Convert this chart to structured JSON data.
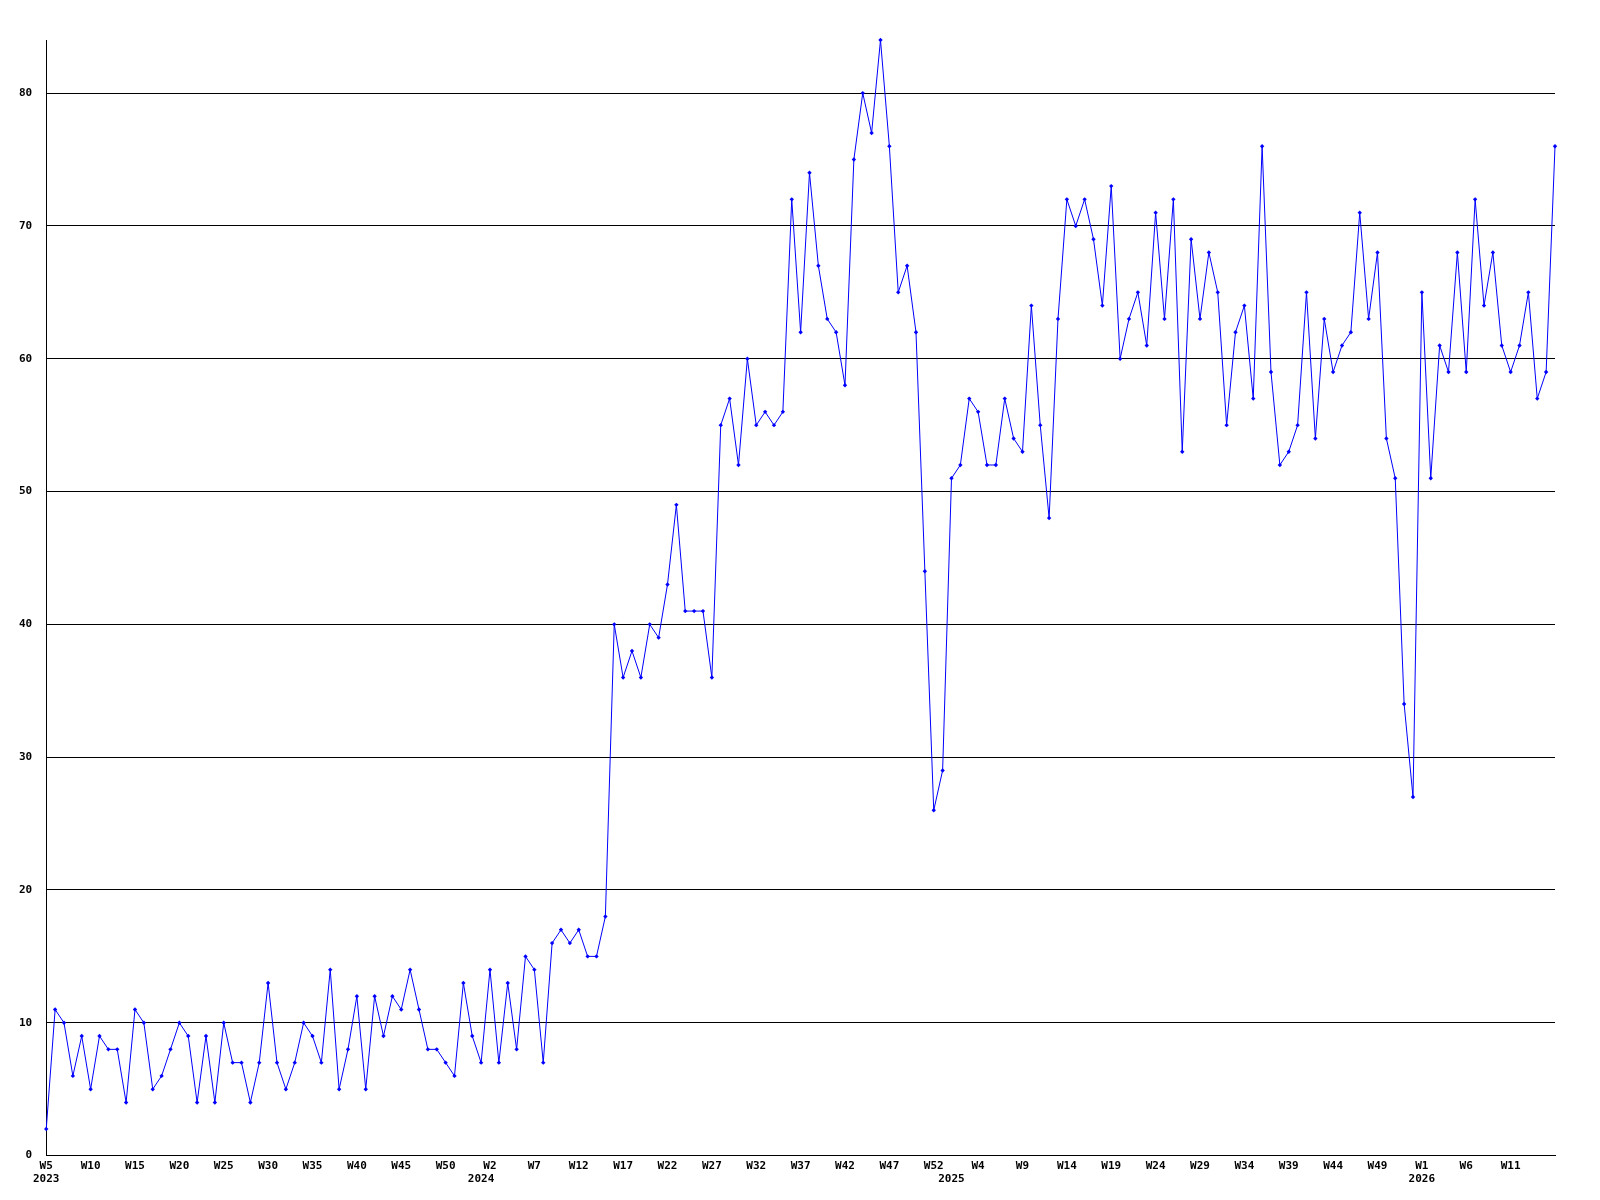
{
  "chart_data": {
    "type": "line",
    "categories": [
      "W5\n2023",
      null,
      null,
      null,
      null,
      "W10",
      null,
      null,
      null,
      null,
      "W15",
      null,
      null,
      null,
      null,
      "W20",
      null,
      null,
      null,
      null,
      "W25",
      null,
      null,
      null,
      null,
      "W30",
      null,
      null,
      null,
      null,
      "W35",
      null,
      null,
      null,
      null,
      "W40",
      null,
      null,
      null,
      null,
      "W45",
      null,
      null,
      null,
      null,
      "W50",
      null,
      null,
      null,
      "\n2024",
      "W2",
      null,
      null,
      null,
      null,
      "W7",
      null,
      null,
      null,
      null,
      "W12",
      null,
      null,
      null,
      null,
      "W17",
      null,
      null,
      null,
      null,
      "W22",
      null,
      null,
      null,
      null,
      "W27",
      null,
      null,
      null,
      null,
      "W32",
      null,
      null,
      null,
      null,
      "W37",
      null,
      null,
      null,
      null,
      "W42",
      null,
      null,
      null,
      null,
      "W47",
      null,
      null,
      null,
      null,
      "W52",
      null,
      "\n2025",
      null,
      null,
      "W4",
      null,
      null,
      null,
      null,
      "W9",
      null,
      null,
      null,
      null,
      "W14",
      null,
      null,
      null,
      null,
      "W19",
      null,
      null,
      null,
      null,
      "W24",
      null,
      null,
      null,
      null,
      "W29",
      null,
      null,
      null,
      null,
      "W34",
      null,
      null,
      null,
      null,
      "W39",
      null,
      null,
      null,
      null,
      "W44",
      null,
      null,
      null,
      null,
      "W49",
      null,
      null,
      null,
      null,
      "W1\n2026",
      null,
      null,
      null,
      null,
      "W6",
      null,
      null,
      null,
      null,
      "W11",
      null,
      null,
      null,
      null,
      null
    ],
    "series": [
      {
        "color": "#0000ff",
        "values": [
          2,
          11,
          10,
          6,
          9,
          5,
          9,
          8,
          8,
          4,
          11,
          10,
          5,
          6,
          8,
          10,
          9,
          4,
          9,
          4,
          10,
          7,
          7,
          4,
          7,
          13,
          7,
          5,
          7,
          10,
          9,
          7,
          14,
          5,
          8,
          12,
          5,
          12,
          9,
          12,
          11,
          14,
          11,
          8,
          8,
          7,
          6,
          13,
          9,
          7,
          14,
          7,
          13,
          8,
          15,
          14,
          7,
          16,
          17,
          16,
          17,
          15,
          15,
          18,
          40,
          36,
          38,
          36,
          40,
          39,
          43,
          49,
          41,
          41,
          41,
          36,
          55,
          57,
          52,
          60,
          55,
          56,
          55,
          56,
          72,
          62,
          74,
          67,
          63,
          62,
          58,
          75,
          80,
          77,
          84,
          76,
          65,
          67,
          62,
          44,
          26,
          29,
          51,
          52,
          57,
          56,
          52,
          52,
          57,
          54,
          53,
          64,
          55,
          48,
          63,
          72,
          70,
          72,
          69,
          64,
          73,
          60,
          63,
          65,
          61,
          71,
          63,
          72,
          53,
          69,
          63,
          68,
          65,
          55,
          62,
          64,
          57,
          76,
          59,
          52,
          53,
          55,
          65,
          54,
          63,
          59,
          61,
          62,
          71,
          63,
          68,
          54,
          51,
          34,
          27,
          65,
          51,
          61,
          59,
          68,
          59,
          72,
          64,
          68,
          61,
          59,
          61,
          65,
          57,
          59,
          76
        ]
      }
    ],
    "ylim": [
      0,
      84
    ],
    "yticks": [
      0,
      10,
      20,
      30,
      40,
      50,
      60,
      70,
      80
    ],
    "grid": "y",
    "legend": false,
    "marker": "diamond",
    "line_style": "solid"
  }
}
